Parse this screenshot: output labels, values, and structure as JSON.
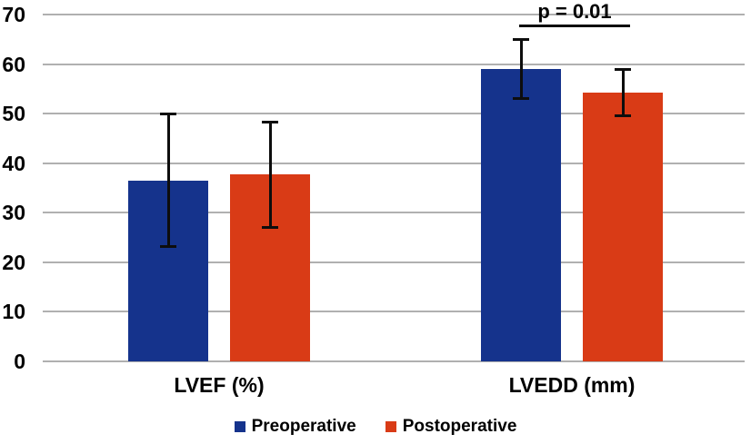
{
  "chart_data": {
    "type": "bar",
    "title": "",
    "categories": [
      "LVEF (%)",
      "LVEDD (mm)"
    ],
    "series": [
      {
        "name": "Preoperative",
        "color": "#15338C",
        "values": [
          36.5,
          59
        ],
        "error_low": [
          23,
          53
        ],
        "error_high": [
          50,
          65
        ]
      },
      {
        "name": "Postoperative",
        "color": "#D93B16",
        "values": [
          37.8,
          54.2
        ],
        "error_low": [
          27,
          49.5
        ],
        "error_high": [
          48.3,
          59
        ]
      }
    ],
    "xlabel": "",
    "ylabel": "",
    "ylim": [
      0,
      70
    ],
    "yticks": [
      0,
      10,
      20,
      30,
      40,
      50,
      60,
      70
    ],
    "grid": true,
    "legend_position": "bottom",
    "annotation": {
      "text": "p = 0.01",
      "target_category": "LVEDD (mm)"
    }
  },
  "colors": {
    "preoperative": "#15338C",
    "postoperative": "#D93B16",
    "gridline": "#B0B0B0",
    "error_bar": "#0D0D0D",
    "text": "#000000"
  }
}
